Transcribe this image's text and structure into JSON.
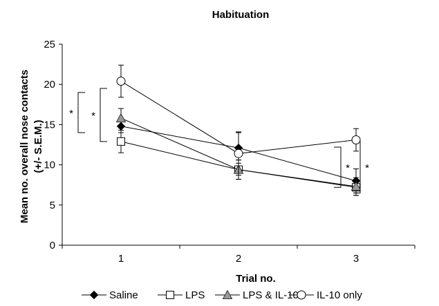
{
  "chart_data": {
    "type": "line",
    "title": "Habituation",
    "xlabel": "Trial no.",
    "ylabel_lines": [
      "Mean no. overall nose contacts",
      "(+/- S.E.M.)"
    ],
    "categories": [
      "1",
      "2",
      "3"
    ],
    "ylim": [
      0,
      25
    ],
    "yticks": [
      "0",
      "5",
      "10",
      "15",
      "20",
      "25"
    ],
    "grid": false,
    "legend_position": "bottom",
    "series": [
      {
        "name": "Saline",
        "marker": "diamond",
        "fill": "#000000",
        "values": [
          14.8,
          12.1,
          8.0
        ],
        "errors": [
          0.8,
          1.9,
          1.5
        ]
      },
      {
        "name": "LPS",
        "marker": "square",
        "fill": "#ffffff",
        "values": [
          12.9,
          9.4,
          7.2
        ],
        "errors": [
          1.4,
          1.2,
          1.0
        ]
      },
      {
        "name": "LPS & IL-10",
        "marker": "triangle",
        "fill": "#999999",
        "values": [
          15.8,
          9.4,
          7.3
        ],
        "errors": [
          1.2,
          1.2,
          1.1
        ]
      },
      {
        "name": "IL-10 only",
        "marker": "circle",
        "fill": "#ffffff",
        "values": [
          20.4,
          11.4,
          13.1
        ],
        "errors": [
          2.0,
          2.7,
          1.4
        ]
      }
    ],
    "significance": [
      {
        "at": "1",
        "y_range": [
          14.0,
          19.0
        ],
        "label": "*"
      },
      {
        "at": "1",
        "y_range": [
          12.9,
          19.5
        ],
        "label": "*"
      },
      {
        "at": "3",
        "y_range": [
          7.2,
          12.2
        ],
        "label": "*"
      },
      {
        "at": "3",
        "y_range": [
          6.5,
          12.9
        ],
        "label": "*"
      }
    ]
  }
}
